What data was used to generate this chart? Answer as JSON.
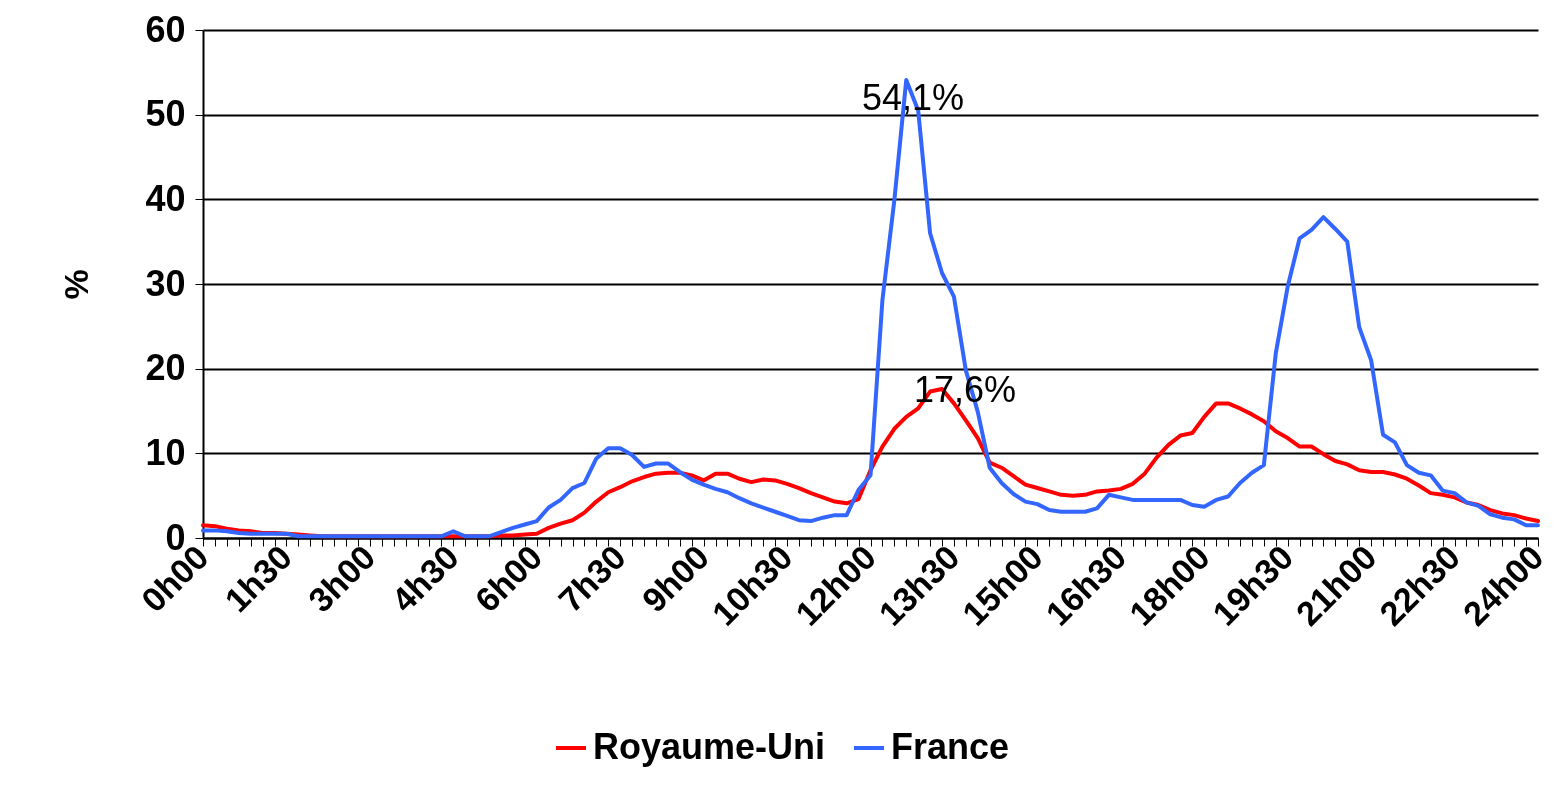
{
  "chart_data": {
    "type": "line",
    "ylabel": "%",
    "ylim": [
      0,
      60
    ],
    "yticks": [
      0,
      10,
      20,
      30,
      40,
      50,
      60
    ],
    "categories": [
      "0h00",
      null,
      null,
      null,
      null,
      null,
      null,
      "1h30",
      null,
      null,
      null,
      null,
      null,
      null,
      "3h00",
      null,
      null,
      null,
      null,
      null,
      null,
      "4h30",
      null,
      null,
      null,
      null,
      null,
      null,
      "6h00",
      null,
      null,
      null,
      null,
      null,
      null,
      "7h30",
      null,
      null,
      null,
      null,
      null,
      null,
      "9h00",
      null,
      null,
      null,
      null,
      null,
      null,
      "10h30",
      null,
      null,
      null,
      null,
      null,
      null,
      "12h00",
      null,
      null,
      null,
      null,
      null,
      null,
      "13h30",
      null,
      null,
      null,
      null,
      null,
      null,
      "15h00",
      null,
      null,
      null,
      null,
      null,
      null,
      "16h30",
      null,
      null,
      null,
      null,
      null,
      null,
      "18h00",
      null,
      null,
      null,
      null,
      null,
      null,
      "19h30",
      null,
      null,
      null,
      null,
      null,
      null,
      "21h00",
      null,
      null,
      null,
      null,
      null,
      null,
      "22h30",
      null,
      null,
      null,
      null,
      null,
      null,
      "24h00"
    ],
    "grid": "y",
    "legend": "bottom",
    "line_style": "solid",
    "marker": "none",
    "series": [
      {
        "name": "Royaume-Uni",
        "color": "#ff0000",
        "values": [
          1.5,
          1.4,
          1.1,
          0.9,
          0.8,
          0.6,
          0.6,
          0.5,
          0.4,
          0.3,
          0.2,
          0.2,
          0.2,
          0.2,
          0.2,
          0.2,
          0.2,
          0.2,
          0.2,
          0.2,
          0.2,
          0.2,
          0.2,
          0.2,
          0.2,
          0.3,
          0.3,
          0.4,
          0.5,
          1.2,
          1.7,
          2.1,
          3.0,
          4.3,
          5.4,
          6.0,
          6.7,
          7.2,
          7.6,
          7.7,
          7.7,
          7.4,
          6.8,
          7.6,
          7.6,
          7.0,
          6.6,
          6.9,
          6.8,
          6.4,
          5.9,
          5.3,
          4.8,
          4.3,
          4.1,
          4.6,
          8.0,
          10.8,
          12.9,
          14.3,
          15.3,
          17.3,
          17.6,
          15.9,
          13.9,
          11.8,
          8.9,
          8.3,
          7.3,
          6.3,
          5.9,
          5.5,
          5.1,
          5.0,
          5.1,
          5.5,
          5.6,
          5.8,
          6.4,
          7.6,
          9.5,
          11.0,
          12.1,
          12.4,
          14.3,
          15.9,
          15.9,
          15.3,
          14.6,
          13.8,
          12.6,
          11.8,
          10.8,
          10.8,
          9.9,
          9.1,
          8.7,
          8.0,
          7.8,
          7.8,
          7.5,
          7.0,
          6.2,
          5.3,
          5.1,
          4.8,
          4.2,
          3.9,
          3.3,
          2.9,
          2.7,
          2.3,
          2.0
        ]
      },
      {
        "name": "France",
        "color": "#3366ff",
        "values": [
          0.9,
          0.9,
          0.8,
          0.6,
          0.5,
          0.5,
          0.5,
          0.5,
          0.2,
          0.2,
          0.2,
          0.2,
          0.2,
          0.2,
          0.2,
          0.2,
          0.2,
          0.2,
          0.2,
          0.2,
          0.2,
          0.8,
          0.2,
          0.2,
          0.2,
          0.7,
          1.2,
          1.6,
          2.0,
          3.6,
          4.5,
          5.9,
          6.5,
          9.4,
          10.6,
          10.6,
          9.8,
          8.4,
          8.8,
          8.8,
          7.8,
          6.9,
          6.3,
          5.8,
          5.4,
          4.7,
          4.1,
          3.6,
          3.1,
          2.6,
          2.1,
          2.0,
          2.4,
          2.7,
          2.7,
          5.7,
          7.4,
          28.1,
          39.9,
          54.1,
          50.5,
          36.0,
          31.3,
          28.5,
          19.8,
          14.9,
          8.3,
          6.5,
          5.2,
          4.3,
          4.0,
          3.3,
          3.1,
          3.1,
          3.1,
          3.5,
          5.1,
          4.8,
          4.5,
          4.5,
          4.5,
          4.5,
          4.5,
          3.9,
          3.7,
          4.5,
          4.9,
          6.5,
          7.7,
          8.6,
          21.8,
          29.7,
          35.4,
          36.4,
          37.9,
          36.5,
          35.0,
          24.9,
          21.0,
          12.2,
          11.3,
          8.6,
          7.7,
          7.4,
          5.6,
          5.3,
          4.2,
          3.8,
          2.8,
          2.4,
          2.2,
          1.5,
          1.5
        ]
      }
    ],
    "annotations": [
      "54,1%",
      "17,6%"
    ]
  }
}
